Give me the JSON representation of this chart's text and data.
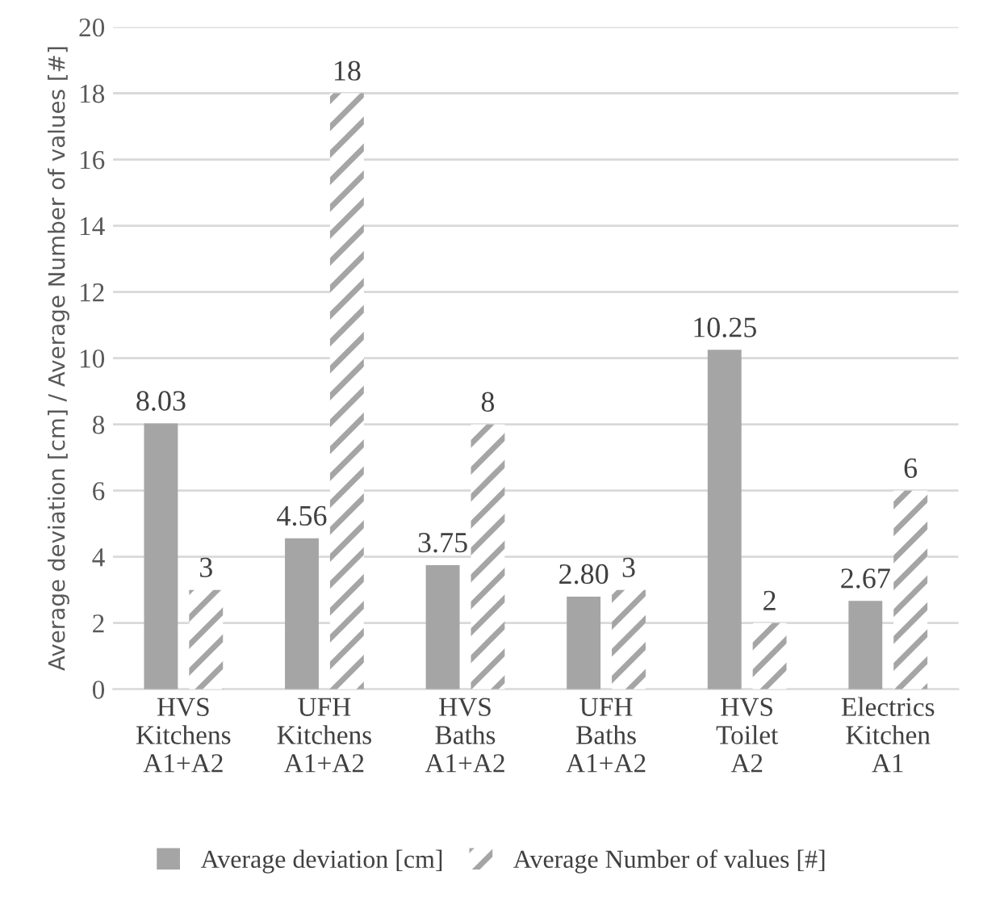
{
  "chart_data": {
    "type": "bar",
    "ylabel": "Average deviation [cm] / Average Number of values [#]",
    "categories": [
      "HVS\nKitchens\nA1+A2",
      "UFH\nKitchens\nA1+A2",
      "HVS\nBaths\nA1+A2",
      "UFH\nBaths\nA1+A2",
      "HVS\nToilet\nA2",
      "Electrics\nKitchen\nA1"
    ],
    "series": [
      {
        "name": "Average deviation [cm]",
        "color": "#a5a5a5",
        "values": [
          8.03,
          4.56,
          3.75,
          2.8,
          10.25,
          2.67
        ],
        "value_labels": [
          "8.03",
          "4.56",
          "3.75",
          "2.80",
          "10.25",
          "2.67"
        ]
      },
      {
        "name": "Average Number of values [#]",
        "color": "#a5a5a5",
        "values": [
          3,
          18,
          8,
          3,
          2,
          6
        ],
        "value_labels": [
          "3",
          "18",
          "8",
          "3",
          "2",
          "6"
        ]
      }
    ],
    "ylim": [
      0,
      20
    ],
    "yticks": [
      0,
      2,
      4,
      6,
      8,
      10,
      12,
      14,
      16,
      18,
      20
    ],
    "grid": "y",
    "legend": "bottom"
  }
}
